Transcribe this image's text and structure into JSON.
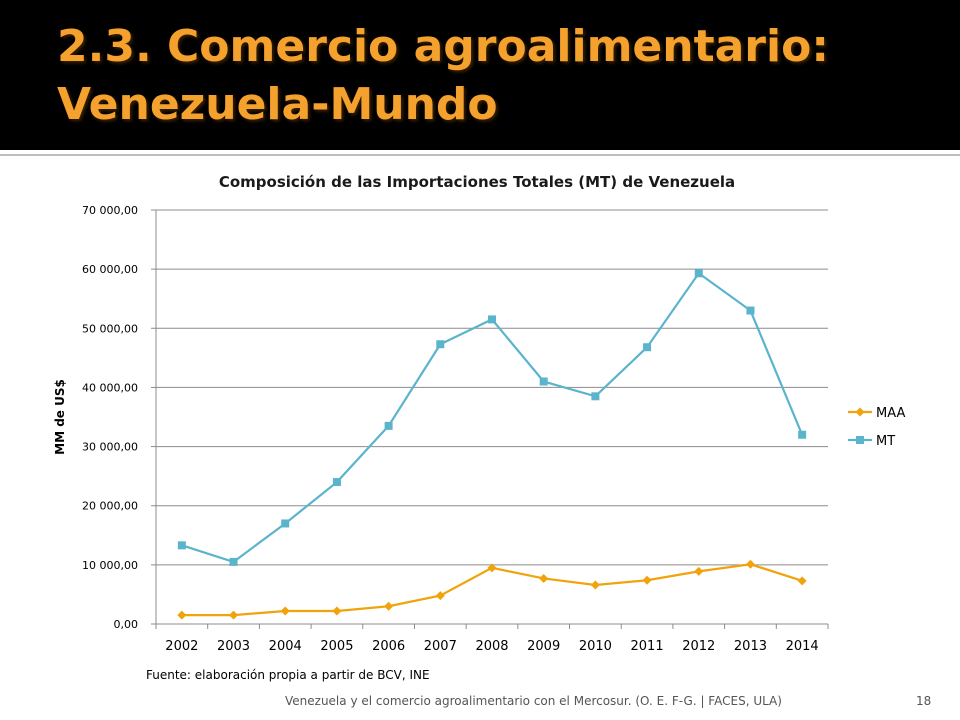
{
  "slide": {
    "title_line1": "2.3. Comercio agroalimentario:",
    "title_line2": "Venezuela-Mundo",
    "source": "Fuente: elaboración propia a partir de BCV, INE",
    "footer": "Venezuela y el comercio agroalimentario con el Mercosur. (O. E. F-G. | FACES, ULA)",
    "page_number": "18"
  },
  "chart_data": {
    "type": "line",
    "title": "Composición de las Importaciones Totales (MT) de Venezuela",
    "xlabel": "",
    "ylabel": "MM de US$",
    "categories": [
      "2002",
      "2003",
      "2004",
      "2005",
      "2006",
      "2007",
      "2008",
      "2009",
      "2010",
      "2011",
      "2012",
      "2013",
      "2014"
    ],
    "ylim": [
      0,
      70000
    ],
    "yticks": [
      0,
      10000,
      20000,
      30000,
      40000,
      50000,
      60000,
      70000
    ],
    "ytick_labels": [
      "0,00",
      "10 000,00",
      "20 000,00",
      "30 000,00",
      "40 000,00",
      "50 000,00",
      "60 000,00",
      "70 000,00"
    ],
    "grid": true,
    "legend_position": "right",
    "series": [
      {
        "name": "MAA",
        "color": "#f0a30a",
        "marker": "diamond",
        "values": [
          1500,
          1500,
          2200,
          2200,
          3000,
          4800,
          9500,
          7700,
          6600,
          7400,
          8900,
          10100,
          7300
        ]
      },
      {
        "name": "MT",
        "color": "#5ab4cc",
        "marker": "square",
        "values": [
          13300,
          10500,
          17000,
          24000,
          33500,
          47300,
          51500,
          41000,
          38500,
          46800,
          59300,
          53000,
          32000
        ]
      }
    ]
  }
}
